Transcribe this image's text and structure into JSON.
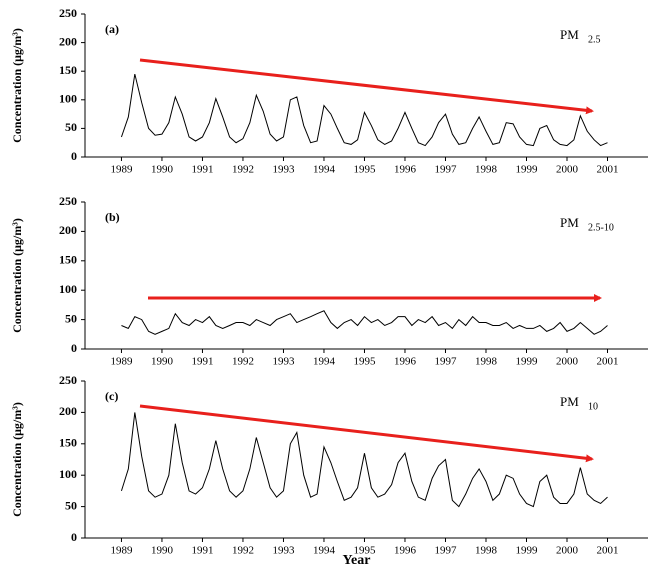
{
  "chart_data": [
    {
      "type": "line",
      "annotation": "(a)",
      "label_main": "PM",
      "label_sub": "2.5",
      "y_label": "Concentration (μg/m³)",
      "x": [
        1989,
        1989.17,
        1989.33,
        1989.5,
        1989.67,
        1989.83,
        1990,
        1990.17,
        1990.33,
        1990.5,
        1990.67,
        1990.83,
        1991,
        1991.17,
        1991.33,
        1991.5,
        1991.67,
        1991.83,
        1992,
        1992.17,
        1992.33,
        1992.5,
        1992.67,
        1992.83,
        1993,
        1993.17,
        1993.33,
        1993.5,
        1993.67,
        1993.83,
        1994,
        1994.17,
        1994.33,
        1994.5,
        1994.67,
        1994.83,
        1995,
        1995.17,
        1995.33,
        1995.5,
        1995.67,
        1995.83,
        1996,
        1996.17,
        1996.33,
        1996.5,
        1996.67,
        1996.83,
        1997,
        1997.17,
        1997.33,
        1997.5,
        1997.67,
        1997.83,
        1998,
        1998.17,
        1998.33,
        1998.5,
        1998.67,
        1998.83,
        1999,
        1999.17,
        1999.33,
        1999.5,
        1999.67,
        1999.83,
        2000,
        2000.17,
        2000.33,
        2000.5,
        2000.67,
        2000.83,
        2001
      ],
      "series": [
        {
          "color": "#000000",
          "values": [
            35,
            70,
            145,
            95,
            50,
            38,
            40,
            60,
            105,
            75,
            35,
            28,
            35,
            60,
            102,
            70,
            35,
            25,
            32,
            60,
            108,
            80,
            40,
            28,
            35,
            100,
            105,
            55,
            25,
            28,
            90,
            75,
            50,
            25,
            22,
            30,
            78,
            55,
            30,
            22,
            28,
            50,
            78,
            50,
            25,
            20,
            35,
            60,
            75,
            40,
            22,
            25,
            50,
            70,
            45,
            22,
            25,
            60,
            58,
            35,
            22,
            20,
            50,
            55,
            30,
            22,
            20,
            30,
            72,
            45,
            30,
            20,
            25
          ]
        }
      ],
      "xlim": [
        1988.1,
        2002
      ],
      "xticks": [
        1989,
        1990,
        1991,
        1992,
        1993,
        1994,
        1995,
        1996,
        1997,
        1998,
        1999,
        2000,
        2001
      ],
      "ylim": [
        0,
        250
      ],
      "yticks": [
        0,
        50,
        100,
        150,
        200,
        250
      ]
    },
    {
      "type": "line",
      "annotation": "(b)",
      "label_main": "PM",
      "label_sub": "2.5-10",
      "y_label": "Concentration (μg/m³)",
      "x": [
        1989,
        1989.17,
        1989.33,
        1989.5,
        1989.67,
        1989.83,
        1990,
        1990.17,
        1990.33,
        1990.5,
        1990.67,
        1990.83,
        1991,
        1991.17,
        1991.33,
        1991.5,
        1991.67,
        1991.83,
        1992,
        1992.17,
        1992.33,
        1992.5,
        1992.67,
        1992.83,
        1993,
        1993.17,
        1993.33,
        1993.5,
        1993.67,
        1993.83,
        1994,
        1994.17,
        1994.33,
        1994.5,
        1994.67,
        1994.83,
        1995,
        1995.17,
        1995.33,
        1995.5,
        1995.67,
        1995.83,
        1996,
        1996.17,
        1996.33,
        1996.5,
        1996.67,
        1996.83,
        1997,
        1997.17,
        1997.33,
        1997.5,
        1997.67,
        1997.83,
        1998,
        1998.17,
        1998.33,
        1998.5,
        1998.67,
        1998.83,
        1999,
        1999.17,
        1999.33,
        1999.5,
        1999.67,
        1999.83,
        2000,
        2000.17,
        2000.33,
        2000.5,
        2000.67,
        2000.83,
        2001
      ],
      "series": [
        {
          "color": "#000000",
          "values": [
            40,
            35,
            55,
            50,
            30,
            25,
            30,
            35,
            60,
            45,
            40,
            50,
            45,
            55,
            40,
            35,
            40,
            45,
            45,
            40,
            50,
            45,
            40,
            50,
            55,
            60,
            45,
            50,
            55,
            60,
            65,
            45,
            35,
            45,
            50,
            40,
            55,
            45,
            50,
            40,
            45,
            55,
            55,
            40,
            50,
            45,
            55,
            40,
            45,
            35,
            50,
            40,
            55,
            45,
            45,
            40,
            40,
            45,
            35,
            40,
            35,
            35,
            40,
            30,
            35,
            45,
            30,
            35,
            45,
            35,
            25,
            30,
            40
          ]
        }
      ],
      "xlim": [
        1988.1,
        2002
      ],
      "xticks": [
        1989,
        1990,
        1991,
        1992,
        1993,
        1994,
        1995,
        1996,
        1997,
        1998,
        1999,
        2000,
        2001
      ],
      "ylim": [
        0,
        250
      ],
      "yticks": [
        0,
        50,
        100,
        150,
        200,
        250
      ]
    },
    {
      "type": "line",
      "annotation": "(c)",
      "label_main": "PM",
      "label_sub": "10",
      "y_label": "Concentration (μg/m³)",
      "x_label": "Year",
      "x": [
        1989,
        1989.17,
        1989.33,
        1989.5,
        1989.67,
        1989.83,
        1990,
        1990.17,
        1990.33,
        1990.5,
        1990.67,
        1990.83,
        1991,
        1991.17,
        1991.33,
        1991.5,
        1991.67,
        1991.83,
        1992,
        1992.17,
        1992.33,
        1992.5,
        1992.67,
        1992.83,
        1993,
        1993.17,
        1993.33,
        1993.5,
        1993.67,
        1993.83,
        1994,
        1994.17,
        1994.33,
        1994.5,
        1994.67,
        1994.83,
        1995,
        1995.17,
        1995.33,
        1995.5,
        1995.67,
        1995.83,
        1996,
        1996.17,
        1996.33,
        1996.5,
        1996.67,
        1996.83,
        1997,
        1997.17,
        1997.33,
        1997.5,
        1997.67,
        1997.83,
        1998,
        1998.17,
        1998.33,
        1998.5,
        1998.67,
        1998.83,
        1999,
        1999.17,
        1999.33,
        1999.5,
        1999.67,
        1999.83,
        2000,
        2000.17,
        2000.33,
        2000.5,
        2000.67,
        2000.83,
        2001
      ],
      "series": [
        {
          "color": "#000000",
          "values": [
            75,
            110,
            200,
            130,
            75,
            65,
            70,
            100,
            182,
            120,
            75,
            70,
            80,
            110,
            155,
            110,
            75,
            65,
            75,
            110,
            160,
            120,
            80,
            65,
            75,
            150,
            168,
            100,
            65,
            70,
            145,
            120,
            90,
            60,
            65,
            80,
            135,
            80,
            65,
            70,
            85,
            120,
            135,
            90,
            65,
            60,
            95,
            115,
            125,
            60,
            50,
            70,
            95,
            110,
            90,
            60,
            70,
            100,
            95,
            70,
            55,
            50,
            90,
            100,
            65,
            55,
            55,
            70,
            112,
            70,
            60,
            55,
            65
          ]
        }
      ],
      "xlim": [
        1988.1,
        2002
      ],
      "xticks": [
        1989,
        1990,
        1991,
        1992,
        1993,
        1994,
        1995,
        1996,
        1997,
        1998,
        1999,
        2000,
        2001
      ],
      "ylim": [
        0,
        250
      ],
      "yticks": [
        0,
        50,
        100,
        150,
        200,
        250
      ]
    }
  ]
}
